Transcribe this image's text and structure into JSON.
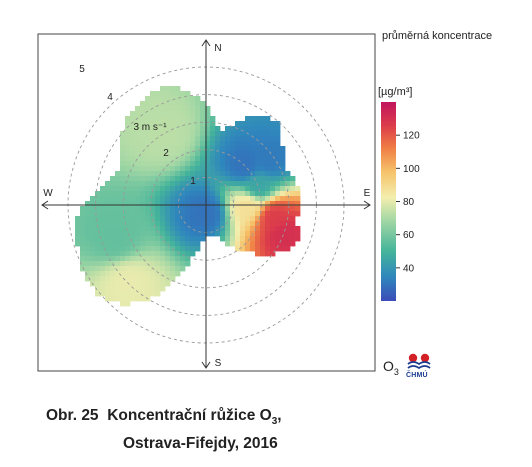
{
  "chart_data": {
    "type": "heatmap",
    "subtype": "polar-pollution-rose",
    "pollutant": "O3",
    "legend_title": "průměrná koncentrace",
    "legend_unit": "[µg/m³]",
    "colorbar": {
      "min": 20,
      "max": 140,
      "ticks": [
        40,
        60,
        80,
        100,
        120
      ],
      "colors": [
        "#3b4cb8",
        "#2f86bd",
        "#45b49a",
        "#9fd6a4",
        "#f3eeae",
        "#f6c26a",
        "#ef7d45",
        "#dc3d4a",
        "#c1155e"
      ]
    },
    "directions": [
      "N",
      "E",
      "S",
      "W"
    ],
    "ring_labels": [
      "1",
      "2",
      "3 m s⁻¹",
      "4",
      "5"
    ],
    "rings_m_s": [
      1,
      2,
      3,
      4,
      5
    ],
    "grid": true,
    "sectors_deg": [
      -40,
      -30,
      -20,
      -10,
      0,
      10,
      20,
      30,
      40,
      50,
      60,
      70,
      80,
      90,
      100,
      110,
      120,
      130,
      140,
      150,
      160,
      170,
      180,
      190,
      200,
      210,
      220,
      230,
      240,
      250,
      260,
      270,
      280,
      290,
      300,
      310
    ],
    "max_speed_m_s": [
      4.3,
      4.4,
      4.6,
      4.2,
      3.6,
      2.7,
      3.2,
      3.8,
      4.0,
      3.6,
      3.2,
      3.2,
      3.5,
      3.4,
      3.3,
      3.6,
      3.3,
      2.8,
      2.1,
      1.8,
      1.2,
      1.1,
      1.2,
      1.5,
      2.6,
      3.9,
      4.7,
      5.1,
      5.1,
      4.9,
      4.9,
      4.4,
      3.9,
      3.4,
      3.6,
      4.0
    ],
    "concentration_samples": [
      {
        "dir_deg": 45,
        "speed_m_s": 2.0,
        "value": 30
      },
      {
        "dir_deg": 55,
        "speed_m_s": 2.8,
        "value": 32
      },
      {
        "dir_deg": 70,
        "speed_m_s": 2.0,
        "value": 45
      },
      {
        "dir_deg": 100,
        "speed_m_s": 2.5,
        "value": 125
      },
      {
        "dir_deg": 110,
        "speed_m_s": 3.0,
        "value": 130
      },
      {
        "dir_deg": 92,
        "speed_m_s": 1.5,
        "value": 85
      },
      {
        "dir_deg": 180,
        "speed_m_s": 0.3,
        "value": 30
      },
      {
        "dir_deg": 250,
        "speed_m_s": 3.5,
        "value": 55
      },
      {
        "dir_deg": 225,
        "speed_m_s": 4.0,
        "value": 78
      },
      {
        "dir_deg": 330,
        "speed_m_s": 3.0,
        "value": 70
      }
    ]
  },
  "caption": {
    "label": "Obr. 25",
    "title_pre": "Koncentrační růžice O",
    "title_sub": "3",
    "title_post": ",",
    "line2": "Ostrava-Fifejdy, 2016"
  },
  "o3_label": {
    "main": "O",
    "sub": "3"
  },
  "logo_text": "ČHMÚ"
}
